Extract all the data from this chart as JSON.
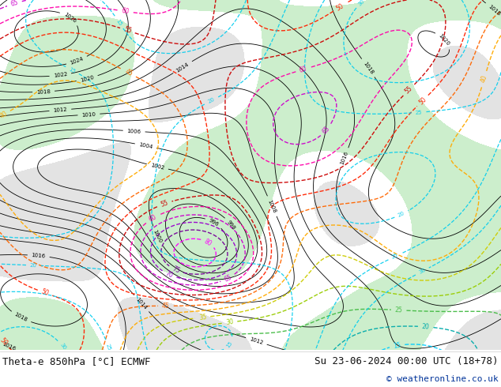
{
  "title_left": "Theta-e 850hPa [°C] ECMWF",
  "title_right": "Su 23-06-2024 00:00 UTC (18+78)",
  "copyright": "© weatheronline.co.uk",
  "bg_color": "#ffffff",
  "map_bg": "#ffffff",
  "land_color": "#cceecc",
  "gray_color": "#bbbbbb",
  "fig_width": 6.34,
  "fig_height": 4.9,
  "dpi": 100,
  "text_color": "#111111",
  "copyright_color": "#003399",
  "font_size_labels": 9,
  "font_size_copyright": 8,
  "pressure_color": "#000000",
  "theta_colors": {
    "15": "#00ccff",
    "20": "#00aaaa",
    "25": "#44bb44",
    "30": "#99cc00",
    "35": "#cccc00",
    "40": "#ffaa00",
    "45": "#ff6600",
    "50": "#ff2200",
    "55": "#cc0000",
    "60": "#ff00aa",
    "65": "#cc00cc",
    "70": "#9900cc",
    "75": "#770099",
    "80": "#ff00ff"
  }
}
